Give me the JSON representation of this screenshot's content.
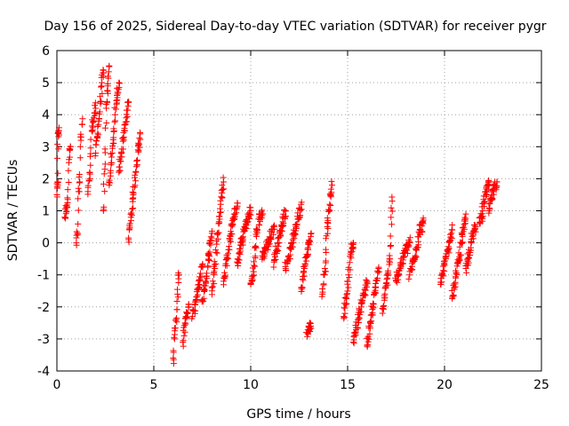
{
  "colors": {
    "marker": "#ff0000",
    "axis": "#000000",
    "grid": "#a0a0a0",
    "background": "#ffffff"
  },
  "chart_data": {
    "type": "scatter",
    "title": "Day 156 of 2025, Sidereal Day-to-day VTEC variation (SDTVAR) for receiver pygr",
    "xlabel": "GPS time / hours",
    "ylabel": "SDTVAR / TECUs",
    "xlim": [
      0,
      25
    ],
    "ylim": [
      -4,
      6
    ],
    "xticks": [
      0,
      5,
      10,
      15,
      20,
      25
    ],
    "yticks": [
      -4,
      -3,
      -2,
      -1,
      0,
      1,
      2,
      3,
      4,
      5,
      6
    ],
    "grid": true,
    "marker": "+",
    "series": [
      {
        "name": "SDTVAR",
        "segments": [
          {
            "x0": 0.0,
            "x1": 0.1,
            "y": [
              1.5,
              1.9,
              3.45,
              3.5
            ]
          },
          {
            "x0": 0.4,
            "x1": 0.7,
            "y": [
              0.8,
              1.1,
              1.25,
              2.6,
              3.0
            ]
          },
          {
            "x0": 1.0,
            "x1": 1.3,
            "y": [
              0.0,
              0.3,
              1.6,
              1.9,
              3.2,
              3.7
            ]
          },
          {
            "x0": 1.6,
            "x1": 2.0,
            "y": [
              1.6,
              2.2,
              3.5,
              3.9,
              4.2
            ]
          },
          {
            "x0": 2.0,
            "x1": 2.4,
            "y": [
              2.8,
              3.3,
              3.8,
              4.4,
              5.0,
              5.3
            ]
          },
          {
            "x0": 2.4,
            "x1": 2.7,
            "y": [
              1.0,
              2.3,
              4.2,
              4.9,
              5.5
            ]
          },
          {
            "x0": 2.7,
            "x1": 3.2,
            "y": [
              1.8,
              2.5,
              3.1,
              4.0,
              4.6,
              5.0
            ]
          },
          {
            "x0": 3.2,
            "x1": 3.7,
            "y": [
              2.2,
              2.8,
              3.3,
              3.9,
              4.4
            ]
          },
          {
            "x0": 3.7,
            "x1": 4.3,
            "y": [
              0.1,
              0.8,
              1.5,
              2.2,
              2.9,
              3.4
            ]
          },
          {
            "x0": 6.0,
            "x1": 6.3,
            "y": [
              -3.6,
              -3.0,
              -2.4,
              -1.6,
              -1.0
            ]
          },
          {
            "x0": 6.5,
            "x1": 6.8,
            "y": [
              -3.1,
              -2.3,
              -2.0
            ]
          },
          {
            "x0": 7.0,
            "x1": 7.5,
            "y": [
              -2.3,
              -1.8,
              -1.3,
              -0.7
            ]
          },
          {
            "x0": 7.5,
            "x1": 8.0,
            "y": [
              -1.8,
              -1.2,
              -0.4,
              0.3
            ]
          },
          {
            "x0": 8.0,
            "x1": 8.6,
            "y": [
              -1.5,
              -0.8,
              0.3,
              1.2,
              1.9
            ]
          },
          {
            "x0": 8.6,
            "x1": 9.3,
            "y": [
              -1.2,
              -0.5,
              0.2,
              0.8,
              1.1
            ]
          },
          {
            "x0": 9.3,
            "x1": 10.0,
            "y": [
              -0.6,
              0.0,
              0.6,
              1.0
            ]
          },
          {
            "x0": 10.0,
            "x1": 10.6,
            "y": [
              -1.3,
              -0.9,
              0.2,
              0.8,
              0.9
            ]
          },
          {
            "x0": 10.6,
            "x1": 11.2,
            "y": [
              -0.4,
              0.0,
              0.5
            ]
          },
          {
            "x0": 11.2,
            "x1": 11.8,
            "y": [
              -0.6,
              0.0,
              0.5,
              1.0
            ]
          },
          {
            "x0": 11.8,
            "x1": 12.6,
            "y": [
              -0.8,
              -0.2,
              0.5,
              1.2
            ]
          },
          {
            "x0": 12.6,
            "x1": 13.1,
            "y": [
              -1.4,
              -0.8,
              -0.2,
              0.2
            ]
          },
          {
            "x0": 12.9,
            "x1": 13.1,
            "y": [
              -2.8,
              -2.6
            ]
          },
          {
            "x0": 13.7,
            "x1": 14.2,
            "y": [
              -1.6,
              -0.8,
              0.5,
              1.2,
              1.8
            ]
          },
          {
            "x0": 14.8,
            "x1": 15.3,
            "y": [
              -2.3,
              -1.7,
              -1.0,
              -0.3,
              0.0
            ]
          },
          {
            "x0": 15.3,
            "x1": 16.0,
            "y": [
              -3.1,
              -2.4,
              -1.8,
              -1.2
            ]
          },
          {
            "x0": 16.0,
            "x1": 16.6,
            "y": [
              -3.2,
              -2.6,
              -2.0,
              -1.4,
              -0.8
            ]
          },
          {
            "x0": 16.8,
            "x1": 17.3,
            "y": [
              -2.2,
              -1.6,
              -1.1,
              -0.5,
              1.3
            ]
          },
          {
            "x0": 17.5,
            "x1": 18.2,
            "y": [
              -1.2,
              -0.7,
              -0.3,
              0.0
            ]
          },
          {
            "x0": 18.2,
            "x1": 18.9,
            "y": [
              -1.0,
              -0.6,
              -0.2,
              0.4,
              0.6
            ]
          },
          {
            "x0": 19.8,
            "x1": 20.4,
            "y": [
              -1.3,
              -0.7,
              -0.2,
              0.4
            ]
          },
          {
            "x0": 20.4,
            "x1": 21.1,
            "y": [
              -1.7,
              -1.1,
              -0.5,
              0.2,
              0.9
            ]
          },
          {
            "x0": 21.1,
            "x1": 21.6,
            "y": [
              -0.8,
              -0.3,
              0.2,
              0.5
            ]
          },
          {
            "x0": 21.8,
            "x1": 22.3,
            "y": [
              0.6,
              1.0,
              1.6,
              1.8
            ]
          },
          {
            "x0": 22.3,
            "x1": 22.7,
            "y": [
              1.0,
              1.4,
              1.7,
              1.9
            ]
          }
        ]
      }
    ]
  }
}
